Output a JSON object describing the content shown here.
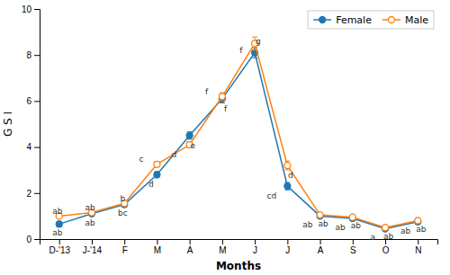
{
  "chart_data": {
    "type": "line",
    "categories": [
      "D-'13",
      "J-'14",
      "F",
      "M",
      "A",
      "M",
      "J",
      "J",
      "A",
      "S",
      "O",
      "N"
    ],
    "series": [
      {
        "name": "Female",
        "marker": "circle",
        "values": [
          0.65,
          1.1,
          1.5,
          2.8,
          4.5,
          6.1,
          8.1,
          2.3,
          1.0,
          0.9,
          0.45,
          0.75
        ],
        "errors": [
          0.12,
          0.09,
          0.1,
          0.13,
          0.16,
          0.18,
          0.22,
          0.16,
          0.09,
          0.08,
          0.07,
          0.08
        ],
        "annotations": [
          "ab",
          "ab",
          "bc",
          "d",
          "e",
          "f",
          "f",
          "cd",
          "ab",
          "ab",
          "a",
          "ab"
        ]
      },
      {
        "name": "Male",
        "marker": "circle-open",
        "values": [
          1.0,
          1.15,
          1.55,
          3.25,
          4.1,
          6.2,
          8.5,
          3.2,
          1.05,
          0.95,
          0.5,
          0.8
        ],
        "errors": [
          0.09,
          0.08,
          0.09,
          0.12,
          0.13,
          0.16,
          0.28,
          0.19,
          0.08,
          0.07,
          0.06,
          0.07
        ],
        "annotations": [
          "ab",
          "ab",
          "b",
          "c",
          "d",
          "f",
          "g",
          "d",
          "ab",
          "ab",
          "ab",
          "ab"
        ]
      }
    ],
    "xlabel": "Months",
    "ylabel": "G S I",
    "ylim": [
      0,
      10
    ],
    "yticks": [
      0,
      2,
      4,
      6,
      8,
      10
    ],
    "grid": false,
    "legend": "top-right"
  }
}
